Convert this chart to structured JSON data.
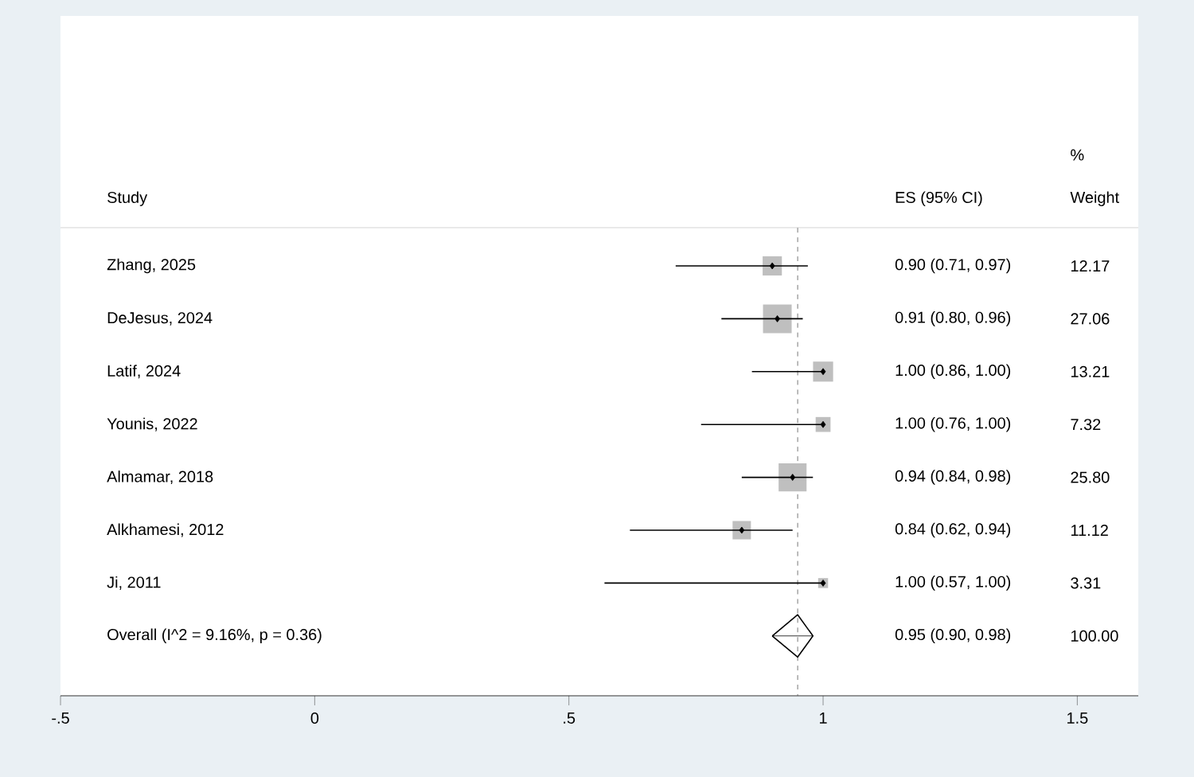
{
  "chart_data": {
    "type": "scatter",
    "orientation": "horizontal",
    "categories": [
      "Zhang, 2025",
      "DeJesus, 2024",
      "Latif, 2024",
      "Younis, 2022",
      "Almamar, 2018",
      "Alkhamesi, 2012",
      "Ji, 2011",
      "Overall  (I^2 = 9.16%, p = 0.36)"
    ],
    "series": [
      {
        "color": "#bfbfbf",
        "marker": "square",
        "values": [
          0.9,
          0.91,
          1.0,
          1.0,
          0.94,
          0.84,
          1.0,
          null
        ],
        "errors": [
          [
            0.71,
            0.97
          ],
          [
            0.8,
            0.96
          ],
          [
            0.86,
            1.0
          ],
          [
            0.76,
            1.0
          ],
          [
            0.84,
            0.98
          ],
          [
            0.62,
            0.94
          ],
          [
            0.57,
            1.0
          ],
          null
        ],
        "sizes": [
          0.45,
          1,
          0.49,
          0.27,
          0.95,
          0.41,
          0.12,
          null
        ]
      },
      {
        "color": "#000000",
        "marker": "diamond",
        "values": [
          null,
          null,
          null,
          null,
          null,
          null,
          null,
          0.95
        ],
        "errors": [
          null,
          null,
          null,
          null,
          null,
          null,
          null,
          [
            0.9,
            0.98
          ]
        ]
      }
    ],
    "xlim": [
      -0.5,
      1.62
    ],
    "xticks": [
      {
        "value": -0.5,
        "label": "-.5"
      },
      0,
      {
        "value": 0.5,
        "label": ".5"
      },
      1,
      1.5
    ],
    "ref_lines": [
      {
        "axis": "x",
        "value": 0.95,
        "line_style": "dashed",
        "color": "#555555"
      }
    ],
    "annotations": [
      "Study",
      "ES (95% CI)",
      "%",
      "Weight",
      "0.90 (0.71, 0.97)",
      "0.91 (0.80, 0.96)",
      "1.00 (0.86, 1.00)",
      "1.00 (0.76, 1.00)",
      "0.94 (0.84, 0.98)",
      "0.84 (0.62, 0.94)",
      "1.00 (0.57, 1.00)",
      "0.95 (0.90, 0.98)",
      "12.17",
      "27.06",
      "13.21",
      "7.32",
      "25.80",
      "11.12",
      "3.31",
      "100.00"
    ]
  }
}
